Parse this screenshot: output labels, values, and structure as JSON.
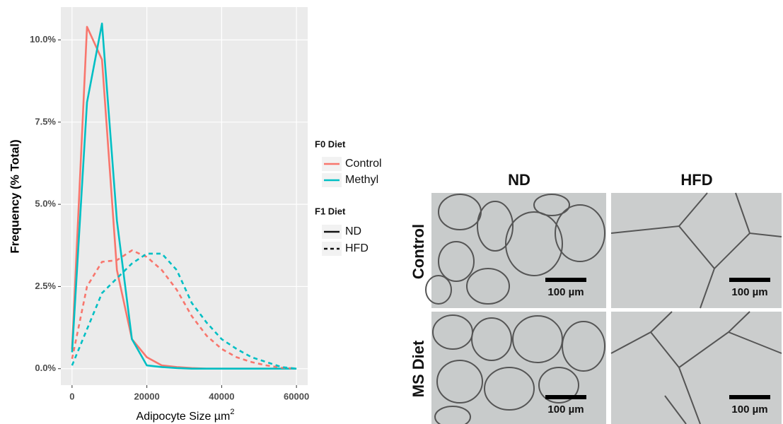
{
  "chart_data": {
    "type": "line",
    "y_label": "Frequency (% Total)",
    "x_label": "Adipocyte Size µm",
    "x_label_sup": "2",
    "x": [
      0,
      4000,
      8000,
      12000,
      16000,
      20000,
      24000,
      28000,
      32000,
      36000,
      40000,
      44000,
      48000,
      52000,
      56000,
      60000
    ],
    "series": [
      {
        "color": "#F8766D",
        "dash": "solid",
        "values": [
          0.6,
          10.4,
          9.4,
          3.0,
          0.9,
          0.35,
          0.1,
          0.05,
          0.02,
          0,
          0,
          0,
          0,
          0,
          0,
          0
        ]
      },
      {
        "color": "#00BFC4",
        "dash": "solid",
        "values": [
          0.5,
          8.1,
          10.5,
          4.5,
          0.9,
          0.1,
          0.05,
          0.02,
          0,
          0,
          0,
          0,
          0,
          0,
          0,
          0
        ]
      },
      {
        "color": "#F8766D",
        "dash": "dashed",
        "values": [
          0.3,
          2.5,
          3.25,
          3.3,
          3.6,
          3.4,
          3.0,
          2.4,
          1.6,
          1.0,
          0.6,
          0.35,
          0.2,
          0.1,
          0.03,
          0
        ]
      },
      {
        "color": "#00BFC4",
        "dash": "dashed",
        "values": [
          0.1,
          1.2,
          2.3,
          2.75,
          3.2,
          3.5,
          3.5,
          3.0,
          2.0,
          1.4,
          0.9,
          0.6,
          0.35,
          0.2,
          0.05,
          0
        ]
      }
    ],
    "xlim": [
      -3000,
      63000
    ],
    "ylim": [
      -0.5,
      11.0
    ],
    "xticks": [
      0,
      20000,
      40000,
      60000
    ],
    "yticks": [
      {
        "value": 0,
        "label": "0.0%"
      },
      {
        "value": 2.5,
        "label": "2.5%"
      },
      {
        "value": 5,
        "label": "5.0%"
      },
      {
        "value": 7.5,
        "label": "7.5%"
      },
      {
        "value": 10,
        "label": "10.0%"
      }
    ],
    "grid": true,
    "legend": {
      "color": {
        "title": "F0 Diet",
        "entries": [
          {
            "label": "Control",
            "color": "#F8766D"
          },
          {
            "label": "Methyl",
            "color": "#00BFC4"
          }
        ]
      },
      "linetype": {
        "title": "F1 Diet",
        "entries": [
          {
            "label": "ND",
            "dash": "solid"
          },
          {
            "label": "HFD",
            "dash": "dashed"
          }
        ]
      }
    }
  },
  "micrographs": {
    "columns": [
      "ND",
      "HFD"
    ],
    "rows": [
      "Control",
      "MS Diet"
    ],
    "scale_bar": "100 µm"
  }
}
